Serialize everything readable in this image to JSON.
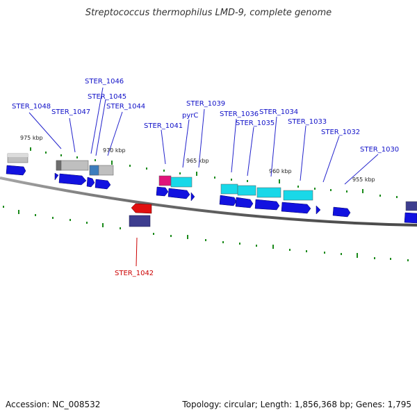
{
  "title": "Streptococcus thermophilus LMD-9, complete genome",
  "footer": {
    "accession": "Accession: NC_008532",
    "summary": "Topology: circular; Length: 1,856,368 bp; Genes: 1,795"
  },
  "colors": {
    "backbone": "#777777",
    "forward_label": "#1010c8",
    "reverse_label": "#cc0000",
    "tick": "#1a8a1a",
    "cds": "#1212e0",
    "cyan": "#19d8e8",
    "gray": "#bfbfbf",
    "magenta": "#e0147a",
    "steel": "#3d7dbd",
    "red": "#e01010",
    "indigo": "#3d3d8f"
  },
  "tick_labels": [
    "975 kbp",
    "970 kbp",
    "965 kbp",
    "960 kbp",
    "955 kbp"
  ],
  "genes": [
    {
      "name": "STER_1048",
      "strand": "forward"
    },
    {
      "name": "STER_1047",
      "strand": "forward"
    },
    {
      "name": "STER_1046",
      "strand": "forward"
    },
    {
      "name": "STER_1045",
      "strand": "forward"
    },
    {
      "name": "STER_1044",
      "strand": "forward"
    },
    {
      "name": "STER_1041",
      "strand": "forward"
    },
    {
      "name": "pyrC",
      "strand": "forward"
    },
    {
      "name": "STER_1039",
      "strand": "forward"
    },
    {
      "name": "STER_1036",
      "strand": "forward"
    },
    {
      "name": "STER_1035",
      "strand": "forward"
    },
    {
      "name": "STER_1034",
      "strand": "forward"
    },
    {
      "name": "STER_1033",
      "strand": "forward"
    },
    {
      "name": "STER_1032",
      "strand": "forward"
    },
    {
      "name": "STER_1030",
      "strand": "forward"
    },
    {
      "name": "STER_1042",
      "strand": "reverse"
    }
  ]
}
